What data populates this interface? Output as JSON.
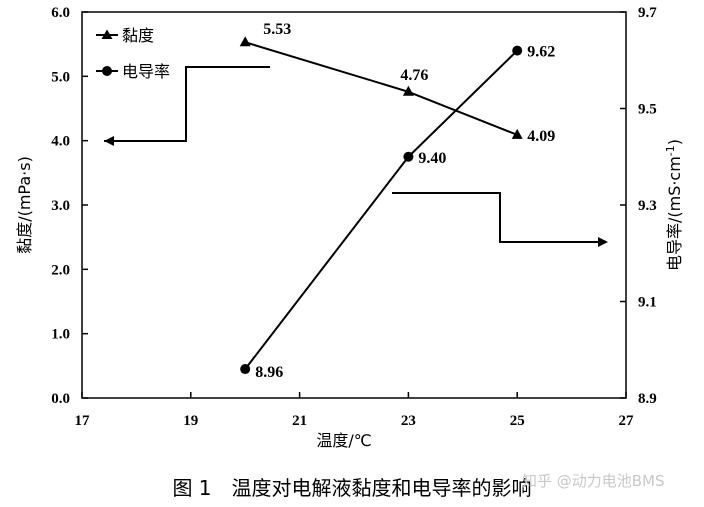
{
  "chart_data": {
    "type": "line",
    "xlabel": "温度/℃",
    "y_left_label": "黏度/(mPa·s)",
    "y_right_label_main": "电导率/(mS·cm",
    "y_right_label_sup": "-1",
    "y_right_label_close": ")",
    "xlim": [
      17,
      27
    ],
    "ylim_left": [
      0,
      6
    ],
    "ylim_right": [
      8.9,
      9.7
    ],
    "x_ticks": [
      "17",
      "19",
      "21",
      "23",
      "25",
      "27"
    ],
    "y_left_ticks": [
      "0.0",
      "1.0",
      "2.0",
      "3.0",
      "4.0",
      "5.0",
      "6.0"
    ],
    "y_right_ticks": [
      "8.9",
      "9.1",
      "9.3",
      "9.5",
      "9.7"
    ],
    "series": [
      {
        "name": "黏度",
        "axis": "left",
        "marker": "triangle",
        "x": [
          20,
          23,
          25
        ],
        "y": [
          5.53,
          4.76,
          4.09
        ],
        "labels": [
          "5.53",
          "4.76",
          "4.09"
        ]
      },
      {
        "name": "电导率",
        "axis": "right",
        "marker": "circle",
        "x": [
          20,
          23,
          25
        ],
        "y": [
          8.96,
          9.4,
          9.62
        ],
        "labels": [
          "8.96",
          "9.40",
          "9.62"
        ]
      }
    ],
    "legend_position": "top-left",
    "grid": false,
    "caption": "图 1　温度对电解液黏度和电导率的影响"
  },
  "watermark": "知乎 @动力电池BMS"
}
